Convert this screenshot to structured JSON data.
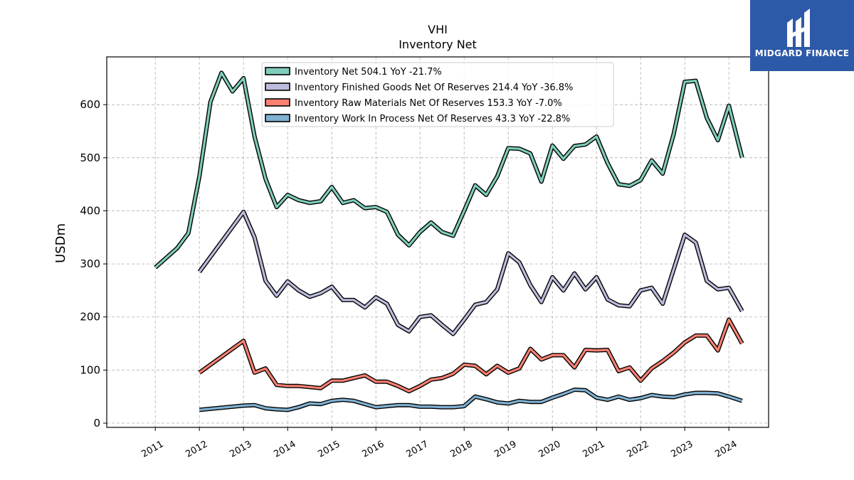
{
  "chart_data": {
    "type": "line",
    "title": "VHI",
    "subtitle": "Inventory Net",
    "ylabel": "USDm",
    "ylim": [
      -8,
      690
    ],
    "xlim": [
      2009.9,
      2024.9
    ],
    "yticks": [
      0,
      100,
      200,
      300,
      400,
      500,
      600
    ],
    "xticks": [
      2011,
      2012,
      2013,
      2014,
      2015,
      2016,
      2017,
      2018,
      2019,
      2020,
      2021,
      2022,
      2023,
      2024
    ],
    "grid": true,
    "legend_position": "top-center",
    "series": [
      {
        "name": "Inventory Net  504.1 YoY -21.7%",
        "color": "#7fcdbb",
        "points": [
          [
            2011.0,
            293
          ],
          [
            2011.5,
            330
          ],
          [
            2011.75,
            358
          ],
          [
            2012.0,
            465
          ],
          [
            2012.25,
            605
          ],
          [
            2012.5,
            660
          ],
          [
            2012.75,
            625
          ],
          [
            2013.0,
            650
          ],
          [
            2013.25,
            540
          ],
          [
            2013.5,
            460
          ],
          [
            2013.75,
            407
          ],
          [
            2014.0,
            430
          ],
          [
            2014.25,
            420
          ],
          [
            2014.5,
            415
          ],
          [
            2014.75,
            418
          ],
          [
            2015.0,
            445
          ],
          [
            2015.25,
            415
          ],
          [
            2015.5,
            420
          ],
          [
            2015.75,
            405
          ],
          [
            2016.0,
            407
          ],
          [
            2016.25,
            398
          ],
          [
            2016.5,
            355
          ],
          [
            2016.75,
            335
          ],
          [
            2017.0,
            360
          ],
          [
            2017.25,
            378
          ],
          [
            2017.5,
            360
          ],
          [
            2017.75,
            353
          ],
          [
            2018.0,
            400
          ],
          [
            2018.25,
            448
          ],
          [
            2018.5,
            430
          ],
          [
            2018.75,
            465
          ],
          [
            2019.0,
            518
          ],
          [
            2019.25,
            517
          ],
          [
            2019.5,
            508
          ],
          [
            2019.75,
            455
          ],
          [
            2020.0,
            523
          ],
          [
            2020.25,
            498
          ],
          [
            2020.5,
            522
          ],
          [
            2020.75,
            525
          ],
          [
            2021.0,
            540
          ],
          [
            2021.25,
            490
          ],
          [
            2021.5,
            450
          ],
          [
            2021.75,
            447
          ],
          [
            2022.0,
            458
          ],
          [
            2022.25,
            495
          ],
          [
            2022.5,
            470
          ],
          [
            2022.75,
            545
          ],
          [
            2023.0,
            643
          ],
          [
            2023.25,
            645
          ],
          [
            2023.5,
            575
          ],
          [
            2023.75,
            533
          ],
          [
            2024.0,
            598
          ],
          [
            2024.3,
            500
          ]
        ]
      },
      {
        "name": "Inventory Finished Goods Net Of Reserves  214.4 YoY -36.8%",
        "color": "#bcbddc",
        "points": [
          [
            2012.0,
            285
          ],
          [
            2013.0,
            398
          ],
          [
            2013.25,
            350
          ],
          [
            2013.5,
            268
          ],
          [
            2013.75,
            240
          ],
          [
            2014.0,
            267
          ],
          [
            2014.25,
            250
          ],
          [
            2014.5,
            238
          ],
          [
            2014.75,
            245
          ],
          [
            2015.0,
            257
          ],
          [
            2015.25,
            232
          ],
          [
            2015.5,
            232
          ],
          [
            2015.75,
            218
          ],
          [
            2016.0,
            237
          ],
          [
            2016.25,
            225
          ],
          [
            2016.5,
            185
          ],
          [
            2016.75,
            173
          ],
          [
            2017.0,
            200
          ],
          [
            2017.25,
            203
          ],
          [
            2017.5,
            185
          ],
          [
            2017.75,
            168
          ],
          [
            2018.0,
            195
          ],
          [
            2018.25,
            223
          ],
          [
            2018.5,
            228
          ],
          [
            2018.75,
            252
          ],
          [
            2019.0,
            320
          ],
          [
            2019.25,
            303
          ],
          [
            2019.5,
            260
          ],
          [
            2019.75,
            228
          ],
          [
            2020.0,
            275
          ],
          [
            2020.25,
            250
          ],
          [
            2020.5,
            282
          ],
          [
            2020.75,
            252
          ],
          [
            2021.0,
            275
          ],
          [
            2021.25,
            233
          ],
          [
            2021.5,
            222
          ],
          [
            2021.75,
            220
          ],
          [
            2022.0,
            250
          ],
          [
            2022.25,
            255
          ],
          [
            2022.5,
            225
          ],
          [
            2022.75,
            290
          ],
          [
            2023.0,
            355
          ],
          [
            2023.25,
            340
          ],
          [
            2023.5,
            268
          ],
          [
            2023.75,
            252
          ],
          [
            2024.0,
            255
          ],
          [
            2024.3,
            211
          ]
        ]
      },
      {
        "name": "Inventory Raw Materials Net Of Reserves  153.3 YoY -7.0%",
        "color": "#fb8072",
        "points": [
          [
            2012.0,
            95
          ],
          [
            2013.0,
            155
          ],
          [
            2013.25,
            95
          ],
          [
            2013.5,
            103
          ],
          [
            2013.75,
            72
          ],
          [
            2014.0,
            70
          ],
          [
            2014.25,
            70
          ],
          [
            2014.5,
            68
          ],
          [
            2014.75,
            66
          ],
          [
            2015.0,
            80
          ],
          [
            2015.25,
            80
          ],
          [
            2015.5,
            85
          ],
          [
            2015.75,
            90
          ],
          [
            2016.0,
            78
          ],
          [
            2016.25,
            78
          ],
          [
            2016.5,
            70
          ],
          [
            2016.75,
            60
          ],
          [
            2017.0,
            70
          ],
          [
            2017.25,
            82
          ],
          [
            2017.5,
            85
          ],
          [
            2017.75,
            93
          ],
          [
            2018.0,
            110
          ],
          [
            2018.25,
            108
          ],
          [
            2018.5,
            92
          ],
          [
            2018.75,
            108
          ],
          [
            2019.0,
            95
          ],
          [
            2019.25,
            103
          ],
          [
            2019.5,
            140
          ],
          [
            2019.75,
            120
          ],
          [
            2020.0,
            128
          ],
          [
            2020.25,
            128
          ],
          [
            2020.5,
            105
          ],
          [
            2020.75,
            138
          ],
          [
            2021.0,
            137
          ],
          [
            2021.25,
            138
          ],
          [
            2021.5,
            98
          ],
          [
            2021.75,
            105
          ],
          [
            2022.0,
            80
          ],
          [
            2022.25,
            103
          ],
          [
            2022.5,
            117
          ],
          [
            2022.75,
            133
          ],
          [
            2023.0,
            152
          ],
          [
            2023.25,
            165
          ],
          [
            2023.5,
            165
          ],
          [
            2023.75,
            137
          ],
          [
            2024.0,
            195
          ],
          [
            2024.3,
            150
          ]
        ]
      },
      {
        "name": "Inventory Work In Process Net Of Reserves  43.3 YoY -22.8%",
        "color": "#80b1d3",
        "points": [
          [
            2012.0,
            25
          ],
          [
            2013.0,
            33
          ],
          [
            2013.25,
            34
          ],
          [
            2013.5,
            28
          ],
          [
            2013.75,
            26
          ],
          [
            2014.0,
            25
          ],
          [
            2014.25,
            30
          ],
          [
            2014.5,
            37
          ],
          [
            2014.75,
            36
          ],
          [
            2015.0,
            42
          ],
          [
            2015.25,
            44
          ],
          [
            2015.5,
            42
          ],
          [
            2015.75,
            36
          ],
          [
            2016.0,
            30
          ],
          [
            2016.25,
            32
          ],
          [
            2016.5,
            34
          ],
          [
            2016.75,
            34
          ],
          [
            2017.0,
            31
          ],
          [
            2017.25,
            31
          ],
          [
            2017.5,
            30
          ],
          [
            2017.75,
            30
          ],
          [
            2018.0,
            32
          ],
          [
            2018.25,
            50
          ],
          [
            2018.5,
            45
          ],
          [
            2018.75,
            39
          ],
          [
            2019.0,
            37
          ],
          [
            2019.25,
            42
          ],
          [
            2019.5,
            40
          ],
          [
            2019.75,
            40
          ],
          [
            2020.0,
            48
          ],
          [
            2020.25,
            55
          ],
          [
            2020.5,
            63
          ],
          [
            2020.75,
            62
          ],
          [
            2021.0,
            48
          ],
          [
            2021.25,
            44
          ],
          [
            2021.5,
            50
          ],
          [
            2021.75,
            44
          ],
          [
            2022.0,
            47
          ],
          [
            2022.25,
            53
          ],
          [
            2022.5,
            50
          ],
          [
            2022.75,
            49
          ],
          [
            2023.0,
            54
          ],
          [
            2023.25,
            57
          ],
          [
            2023.5,
            57
          ],
          [
            2023.75,
            56
          ],
          [
            2024.0,
            50
          ],
          [
            2024.3,
            42
          ]
        ]
      }
    ]
  },
  "logo": {
    "text": "MIDGARD FINANCE"
  }
}
